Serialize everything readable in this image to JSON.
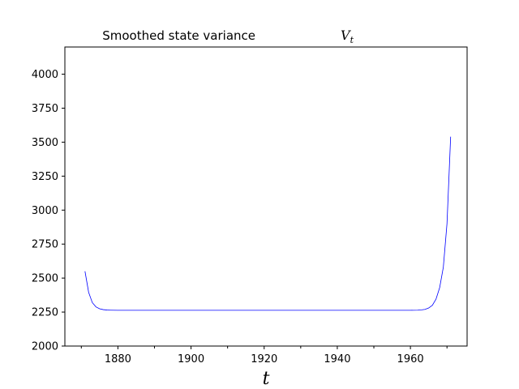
{
  "chart_data": {
    "type": "line",
    "title": "Smoothed state variance",
    "title_math": "V",
    "title_math_sub": "t",
    "xlabel": "t",
    "ylabel": "",
    "xlim": [
      1865.5,
      1975.5
    ],
    "ylim": [
      2000,
      4200
    ],
    "x_ticks": [
      1880,
      1900,
      1920,
      1940,
      1960
    ],
    "x_minor_ticks": [
      1870,
      1890,
      1910,
      1930,
      1950,
      1970
    ],
    "y_ticks": [
      2000,
      2250,
      2500,
      2750,
      3000,
      3250,
      3500,
      3750,
      4000
    ],
    "grid": false,
    "series_color": "#0000ff",
    "series": [
      {
        "x": [
          1871,
          1872,
          1873,
          1874,
          1875,
          1876,
          1877,
          1878,
          1880,
          1885,
          1890,
          1900,
          1910,
          1920,
          1930,
          1940,
          1950,
          1960,
          1962,
          1963,
          1964,
          1965,
          1966,
          1967,
          1968,
          1969,
          1970,
          1971
        ],
        "values": [
          2550,
          2395,
          2320,
          2288,
          2274,
          2268,
          2265,
          2264,
          2263,
          2263,
          2263,
          2263,
          2263,
          2263,
          2263,
          2263,
          2263,
          2263,
          2264,
          2266,
          2270,
          2280,
          2300,
          2345,
          2430,
          2580,
          2900,
          3540
        ]
      }
    ]
  }
}
